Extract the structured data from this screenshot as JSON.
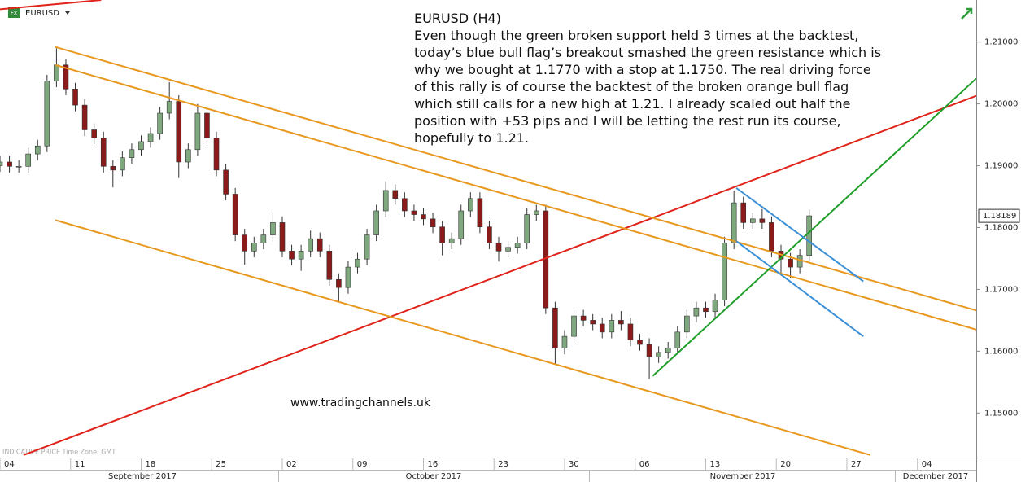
{
  "chart_data": {
    "type": "candlestick",
    "symbol": "EURUSD",
    "title": "EURUSD (H4)",
    "text_lines": [
      "Even though the green broken support held 3 times at the backtest,",
      "today’s blue bull flag’s breakout smashed the green resistance which is",
      "why we bought at 1.1770 with a stop at 1.1750. The real driving force",
      "of this rally is of course the backtest of the broken orange bull flag",
      "which still calls for a new high at 1.21. I already scaled out half the",
      "position with +53 pips and I will be letting the rest run its course,",
      "hopefully to 1.21."
    ],
    "website": "www.tradingchannels.uk",
    "footer_note": "INDICATIVE PRICE   Time Zone: GMT",
    "months": [
      "September 2017",
      "October 2017",
      "November 2017",
      "December 2017"
    ],
    "up_color": "#7fa87f",
    "down_color": "#8b1a1a",
    "last_price": 1.18189,
    "xlim": [
      0,
      415
    ],
    "xticks": [
      {
        "value": 0,
        "label": "04"
      },
      {
        "value": 30,
        "label": "11"
      },
      {
        "value": 60,
        "label": "18"
      },
      {
        "value": 90,
        "label": "25"
      },
      {
        "value": 120,
        "label": "02"
      },
      {
        "value": 150,
        "label": "09"
      },
      {
        "value": 180,
        "label": "16"
      },
      {
        "value": 210,
        "label": "23"
      },
      {
        "value": 240,
        "label": "30"
      },
      {
        "value": 270,
        "label": "06"
      },
      {
        "value": 300,
        "label": "13"
      },
      {
        "value": 330,
        "label": "20"
      },
      {
        "value": 360,
        "label": "27"
      },
      {
        "value": 390,
        "label": "04"
      }
    ],
    "ylim": [
      1.1428,
      1.2168
    ],
    "yticks": [
      {
        "value": 1.15,
        "label": "1.15000"
      },
      {
        "value": 1.16,
        "label": "1.16000"
      },
      {
        "value": 1.17,
        "label": "1.17000"
      },
      {
        "value": 1.18,
        "label": "1.18000"
      },
      {
        "value": 1.19,
        "label": "1.19000"
      },
      {
        "value": 1.2,
        "label": "1.20000"
      },
      {
        "value": 1.21,
        "label": "1.21000"
      }
    ],
    "x": [
      0,
      4,
      8,
      12,
      16,
      20,
      24,
      28,
      32,
      36,
      40,
      44,
      48,
      52,
      56,
      60,
      64,
      68,
      72,
      76,
      80,
      84,
      88,
      92,
      96,
      100,
      104,
      108,
      112,
      116,
      120,
      124,
      128,
      132,
      136,
      140,
      144,
      148,
      152,
      156,
      160,
      164,
      168,
      172,
      176,
      180,
      184,
      188,
      192,
      196,
      200,
      204,
      208,
      212,
      216,
      220,
      224,
      228,
      232,
      236,
      240,
      244,
      248,
      252,
      256,
      260,
      264,
      268,
      272,
      276,
      280,
      284,
      288,
      292,
      296,
      300,
      304,
      308,
      312,
      316,
      320,
      324,
      328,
      332,
      336,
      340,
      344
    ],
    "open": [
      1.19,
      1.1906,
      1.1899,
      1.1899,
      1.1919,
      1.1932,
      1.2037,
      1.2063,
      1.2024,
      1.1998,
      1.1958,
      1.1945,
      1.1899,
      1.1893,
      1.1913,
      1.1926,
      1.1939,
      1.1952,
      1.1985,
      1.2004,
      1.1906,
      1.1926,
      1.1985,
      1.1945,
      1.1893,
      1.1854,
      1.1788,
      1.1762,
      1.1775,
      1.1788,
      1.1808,
      1.1762,
      1.1749,
      1.1762,
      1.1782,
      1.1762,
      1.1716,
      1.1703,
      1.1736,
      1.1749,
      1.1788,
      1.1827,
      1.186,
      1.1847,
      1.1827,
      1.1821,
      1.1814,
      1.1801,
      1.1775,
      1.1782,
      1.1827,
      1.1847,
      1.1801,
      1.1775,
      1.1762,
      1.1768,
      1.1775,
      1.1821,
      1.1827,
      1.167,
      1.1605,
      1.1624,
      1.1657,
      1.165,
      1.1644,
      1.1631,
      1.165,
      1.1644,
      1.1618,
      1.1611,
      1.1591,
      1.1598,
      1.1605,
      1.1631,
      1.1657,
      1.167,
      1.1664,
      1.1683,
      1.1775,
      1.184,
      1.1808,
      1.1814,
      1.1808,
      1.1762,
      1.1749,
      1.1736,
      1.1755
    ],
    "high": [
      1.1916,
      1.1916,
      1.1909,
      1.1929,
      1.1942,
      1.2047,
      1.209,
      1.2073,
      1.2034,
      1.2008,
      1.1968,
      1.1955,
      1.1909,
      1.1923,
      1.1936,
      1.1949,
      1.1962,
      1.1995,
      1.2035,
      1.2014,
      1.1936,
      1.2,
      1.1995,
      1.1955,
      1.1903,
      1.1864,
      1.1798,
      1.1785,
      1.1798,
      1.1825,
      1.1818,
      1.1772,
      1.1772,
      1.1795,
      1.1792,
      1.1772,
      1.1726,
      1.1746,
      1.1759,
      1.1798,
      1.1837,
      1.1875,
      1.187,
      1.1857,
      1.1837,
      1.1831,
      1.1824,
      1.1811,
      1.1792,
      1.1837,
      1.1857,
      1.1857,
      1.1811,
      1.1785,
      1.1778,
      1.1785,
      1.1831,
      1.1837,
      1.1837,
      1.168,
      1.1634,
      1.1667,
      1.1667,
      1.166,
      1.1654,
      1.166,
      1.1665,
      1.1654,
      1.1628,
      1.1621,
      1.1608,
      1.1615,
      1.1641,
      1.1667,
      1.168,
      1.168,
      1.1693,
      1.1785,
      1.186,
      1.185,
      1.1824,
      1.183,
      1.1818,
      1.1772,
      1.1759,
      1.1765,
      1.1829
    ],
    "low": [
      1.189,
      1.1889,
      1.1889,
      1.1889,
      1.1909,
      1.1922,
      1.2027,
      1.2014,
      1.1988,
      1.1948,
      1.1935,
      1.1889,
      1.1865,
      1.1883,
      1.1903,
      1.1916,
      1.1929,
      1.1942,
      1.1975,
      1.188,
      1.1896,
      1.1916,
      1.1935,
      1.1883,
      1.1844,
      1.1778,
      1.174,
      1.1752,
      1.1765,
      1.1778,
      1.1752,
      1.1739,
      1.173,
      1.1752,
      1.1752,
      1.1706,
      1.168,
      1.1693,
      1.1726,
      1.1739,
      1.1778,
      1.1817,
      1.1837,
      1.1817,
      1.1811,
      1.1804,
      1.1791,
      1.1755,
      1.1765,
      1.1772,
      1.1817,
      1.1791,
      1.1765,
      1.1745,
      1.1752,
      1.1758,
      1.1765,
      1.1811,
      1.166,
      1.158,
      1.1595,
      1.1614,
      1.164,
      1.1634,
      1.1621,
      1.1621,
      1.1634,
      1.1608,
      1.1601,
      1.1555,
      1.1581,
      1.1588,
      1.1595,
      1.1621,
      1.1647,
      1.1654,
      1.1654,
      1.1673,
      1.1765,
      1.1798,
      1.1798,
      1.1798,
      1.1752,
      1.1725,
      1.1718,
      1.1726,
      1.1745
    ],
    "close": [
      1.1906,
      1.1899,
      1.1899,
      1.1919,
      1.1932,
      1.2037,
      1.2063,
      1.2024,
      1.1998,
      1.1958,
      1.1945,
      1.1899,
      1.1893,
      1.1913,
      1.1926,
      1.1939,
      1.1952,
      1.1985,
      1.2004,
      1.1906,
      1.1926,
      1.1985,
      1.1945,
      1.1893,
      1.1854,
      1.1788,
      1.1762,
      1.1775,
      1.1788,
      1.1808,
      1.1762,
      1.1749,
      1.1762,
      1.1782,
      1.1762,
      1.1716,
      1.1703,
      1.1736,
      1.1749,
      1.1788,
      1.1827,
      1.186,
      1.1847,
      1.1827,
      1.1821,
      1.1814,
      1.1801,
      1.1775,
      1.1782,
      1.1827,
      1.1847,
      1.1801,
      1.1775,
      1.1762,
      1.1768,
      1.1775,
      1.1821,
      1.1827,
      1.167,
      1.1605,
      1.1624,
      1.1657,
      1.165,
      1.1644,
      1.1631,
      1.165,
      1.1644,
      1.1618,
      1.1611,
      1.1591,
      1.1598,
      1.1605,
      1.1631,
      1.1657,
      1.167,
      1.1664,
      1.1683,
      1.1775,
      1.184,
      1.1808,
      1.1814,
      1.1808,
      1.1762,
      1.1749,
      1.1736,
      1.1755,
      1.1819
    ],
    "lines": [
      {
        "color": "#e0241c",
        "points": [
          [
            0,
            1.2153
          ],
          [
            43,
            1.2168
          ]
        ]
      },
      {
        "color": "#e0241c",
        "points": [
          [
            10,
            1.1432
          ],
          [
            415,
            1.2013
          ]
        ]
      },
      {
        "color": "#e8981e",
        "points": [
          [
            23.5,
            1.2092
          ],
          [
            415,
            1.1666
          ]
        ]
      },
      {
        "color": "#e8981e",
        "points": [
          [
            23.5,
            1.2063
          ],
          [
            415,
            1.1635
          ]
        ]
      },
      {
        "color": "#e8981e",
        "points": [
          [
            23.5,
            1.1812
          ],
          [
            370,
            1.1432
          ]
        ]
      },
      {
        "color": "#1f9e2a",
        "points": [
          [
            277.5,
            1.156
          ],
          [
            415,
            1.2041
          ]
        ]
      },
      {
        "color": "#3a8fd6",
        "points": [
          [
            313,
            1.1864
          ],
          [
            367,
            1.1713
          ]
        ]
      },
      {
        "color": "#3a8fd6",
        "points": [
          [
            313,
            1.1778
          ],
          [
            367,
            1.1624
          ]
        ]
      }
    ]
  }
}
